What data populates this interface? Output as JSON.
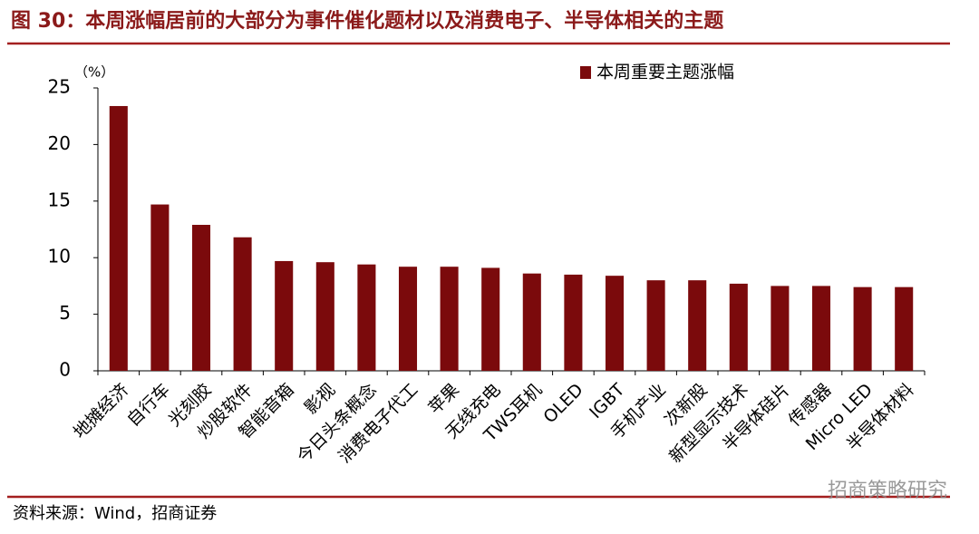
{
  "chart_data": {
    "type": "bar",
    "title": "图 30：本周涨幅居前的大部分为事件催化题材以及消费电子、半导体相关的主题",
    "y_unit": "（%）",
    "source": "资料来源：Wind，招商证券",
    "watermark": "招商策略研究",
    "categories": [
      "地摊经济",
      "自行车",
      "光刻胶",
      "炒股软件",
      "智能音箱",
      "影视",
      "今日头条概念",
      "消费电子代工",
      "苹果",
      "无线充电",
      "TWS耳机",
      "OLED",
      "IGBT",
      "手机产业",
      "次新股",
      "新型显示技术",
      "半导体硅片",
      "传感器",
      "Micro LED",
      "半导体材料"
    ],
    "series": [
      {
        "name": "本周重要主题涨幅",
        "color": "#7b0a0c",
        "values": [
          23.4,
          14.7,
          12.9,
          11.8,
          9.7,
          9.6,
          9.4,
          9.2,
          9.2,
          9.1,
          8.6,
          8.5,
          8.4,
          8.0,
          8.0,
          7.7,
          7.5,
          7.5,
          7.4,
          7.4
        ]
      }
    ],
    "ylim": [
      0,
      25
    ],
    "yticks": [
      0,
      5,
      10,
      15,
      20,
      25
    ],
    "grid": false,
    "legend": "upper right"
  }
}
